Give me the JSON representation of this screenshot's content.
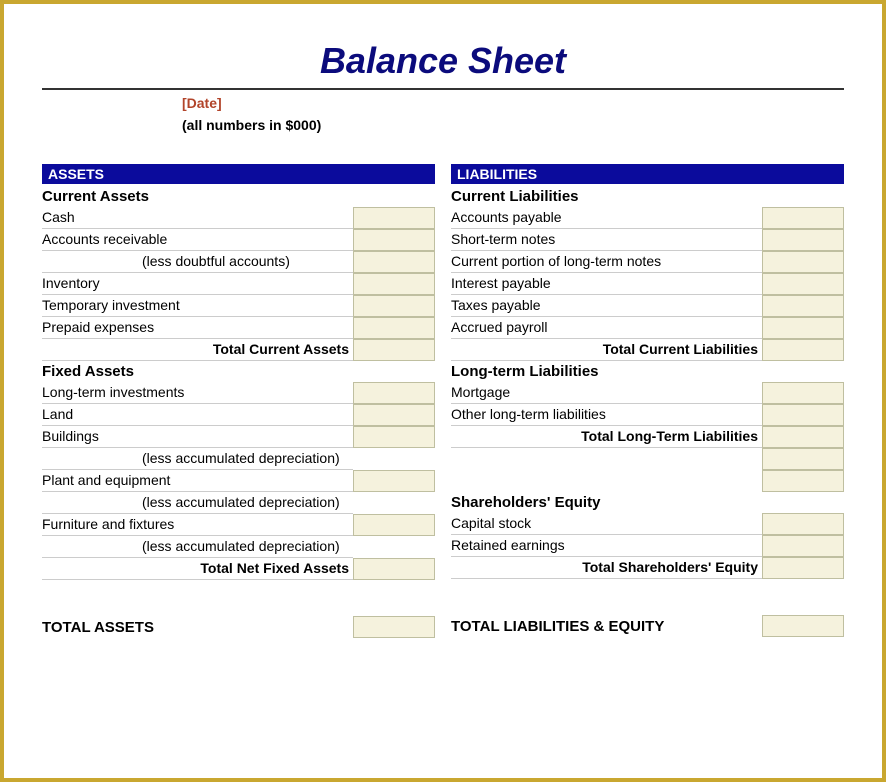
{
  "title": "Balance Sheet",
  "date_placeholder": "[Date]",
  "units_note": "(all numbers in $000)",
  "colors": {
    "border": "#c9a730",
    "header_bg": "#0b0b9c",
    "header_fg": "#ffffff",
    "title_color": "#0b0b7c",
    "date_color": "#b2442a",
    "cell_bg": "#f5f2dd",
    "cell_border": "#bfbfa0",
    "row_border": "#cccccc"
  },
  "left": {
    "header": "ASSETS",
    "sections": [
      {
        "title": "Current Assets",
        "rows": [
          {
            "label": "Cash",
            "has_value": true
          },
          {
            "label": "Accounts receivable",
            "has_value": true
          },
          {
            "label": "(less doubtful accounts)",
            "indent": true,
            "has_value": true
          },
          {
            "label": "Inventory",
            "has_value": true
          },
          {
            "label": "Temporary investment",
            "has_value": true
          },
          {
            "label": "Prepaid expenses",
            "has_value": true
          },
          {
            "label": "Total Current Assets",
            "total": true,
            "has_value": true
          }
        ]
      },
      {
        "title": "Fixed Assets",
        "rows": [
          {
            "label": "Long-term investments",
            "has_value": true
          },
          {
            "label": "Land",
            "has_value": true
          },
          {
            "label": "Buildings",
            "has_value": true
          },
          {
            "label": "(less accumulated depreciation)",
            "indent": true,
            "has_value": false
          },
          {
            "label": "Plant and equipment",
            "has_value": true
          },
          {
            "label": "(less accumulated depreciation)",
            "indent": true,
            "has_value": false
          },
          {
            "label": "Furniture and fixtures",
            "has_value": true
          },
          {
            "label": "(less accumulated depreciation)",
            "indent": true,
            "has_value": false
          },
          {
            "label": "Total Net Fixed Assets",
            "total": true,
            "has_value": true
          }
        ]
      }
    ],
    "grand_total": "TOTAL ASSETS"
  },
  "right": {
    "header": "LIABILITIES",
    "sections": [
      {
        "title": "Current Liabilities",
        "rows": [
          {
            "label": "Accounts payable",
            "has_value": true
          },
          {
            "label": "Short-term notes",
            "has_value": true
          },
          {
            "label": "Current portion of long-term notes",
            "has_value": true
          },
          {
            "label": "Interest payable",
            "has_value": true
          },
          {
            "label": "Taxes payable",
            "has_value": true
          },
          {
            "label": "Accrued payroll",
            "has_value": true
          },
          {
            "label": "Total Current Liabilities",
            "total": true,
            "has_value": true
          }
        ]
      },
      {
        "title": "Long-term Liabilities",
        "rows": [
          {
            "label": "Mortgage",
            "has_value": true
          },
          {
            "label": "Other long-term liabilities",
            "has_value": true
          },
          {
            "label": "Total Long-Term Liabilities",
            "total": true,
            "has_value": true
          },
          {
            "label": "",
            "has_value": true,
            "blank": true
          },
          {
            "label": "",
            "has_value": true,
            "blank": true
          }
        ]
      },
      {
        "title": "Shareholders' Equity",
        "rows": [
          {
            "label": "Capital stock",
            "has_value": true
          },
          {
            "label": "Retained earnings",
            "has_value": true
          },
          {
            "label": "Total Shareholders' Equity",
            "total": true,
            "has_value": true
          }
        ]
      }
    ],
    "grand_total": "TOTAL LIABILITIES & EQUITY"
  }
}
